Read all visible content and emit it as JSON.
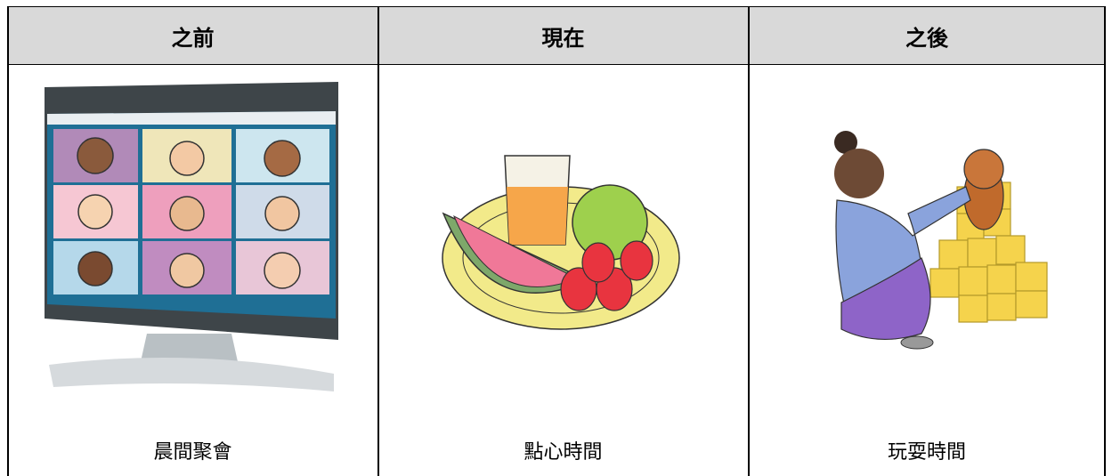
{
  "table": {
    "headers": [
      "之前",
      "現在",
      "之後"
    ],
    "labels": [
      "晨間聚會",
      "點心時間",
      "玩耍時間"
    ]
  }
}
